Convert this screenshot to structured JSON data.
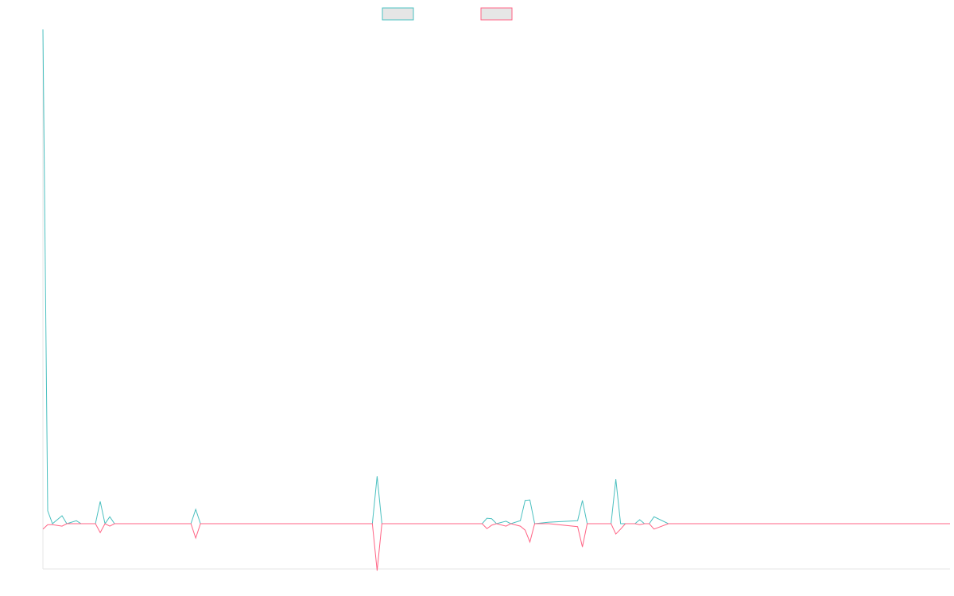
{
  "chart_data": {
    "type": "line",
    "x": [
      0,
      1,
      2,
      4,
      5,
      7,
      8,
      11,
      12,
      13,
      14,
      15,
      31,
      32,
      33,
      69,
      70,
      71,
      92,
      93,
      94,
      95,
      97,
      98,
      100,
      101,
      102,
      103,
      106,
      112,
      113,
      114,
      119,
      120,
      121,
      122,
      124,
      125,
      126,
      127,
      128,
      131,
      190
    ],
    "xlim": [
      0,
      190
    ],
    "ylim": [
      -9.2,
      100
    ],
    "series": [
      {
        "color": "#4bc0c0",
        "values": [
          100,
          2.6,
          0,
          1.6,
          0,
          0.6,
          0,
          0,
          4.5,
          0,
          1.4,
          0,
          0,
          2.9,
          0,
          0,
          9.6,
          0,
          0,
          1.1,
          1,
          0,
          0.5,
          0,
          0.6,
          4.7,
          4.8,
          0,
          0.3,
          0.6,
          4.7,
          0,
          0,
          9,
          0,
          0,
          0,
          0.8,
          0,
          0,
          1.4,
          0,
          0
        ]
      },
      {
        "color": "#ff6384",
        "values": [
          -1.1,
          -0.2,
          -0.2,
          -0.5,
          0,
          0,
          0,
          0,
          -1.8,
          0,
          -0.5,
          0,
          0,
          -2.9,
          0,
          0,
          -9.5,
          0,
          0,
          -1,
          -0.3,
          0,
          -0.5,
          0,
          -0.5,
          -1.3,
          -3.7,
          0,
          0,
          -0.6,
          -4.7,
          0,
          0,
          -2.1,
          -1.1,
          0,
          0,
          -0.2,
          0,
          0,
          -1.1,
          0,
          0
        ]
      }
    ]
  }
}
